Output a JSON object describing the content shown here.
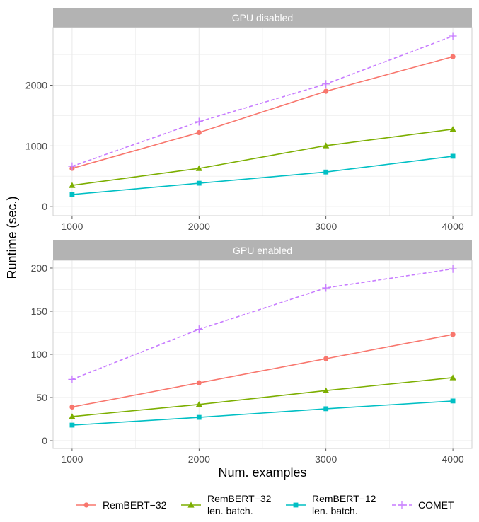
{
  "chart_data": {
    "type": "line",
    "xlabel": "Num. examples",
    "ylabel": "Runtime (sec.)",
    "x": [
      1000,
      2000,
      3000,
      4000
    ],
    "xlim": [
      1000,
      4000
    ],
    "x_ticks": [
      "1000",
      "2000",
      "3000",
      "4000"
    ],
    "grid": true,
    "legend_position": "bottom",
    "colors": {
      "RemBERT-32": "#F8766D",
      "RemBERT-32 len. batch.": "#7CAE00",
      "RemBERT-12 len. batch.": "#00BFC4",
      "COMET": "#C77CFF",
      "strip_bg": "#B3B3B3",
      "grid": "#EBEBEB",
      "panel_border": "#D0D0D0"
    },
    "series_meta": [
      {
        "name": "RemBERT-32",
        "lines": [
          "RemBERT−32"
        ],
        "marker": "circle",
        "linetype": "solid"
      },
      {
        "name": "RemBERT-32 len. batch.",
        "lines": [
          "RemBERT−32",
          "len. batch."
        ],
        "marker": "triangle",
        "linetype": "solid"
      },
      {
        "name": "RemBERT-12 len. batch.",
        "lines": [
          "RemBERT−12",
          "len. batch."
        ],
        "marker": "square",
        "linetype": "solid"
      },
      {
        "name": "COMET",
        "lines": [
          "COMET"
        ],
        "marker": "plus",
        "linetype": "dashed"
      }
    ],
    "panels": [
      {
        "title": "GPU disabled",
        "ylim": [
          -150,
          2950
        ],
        "y_ticks": [
          0,
          1000,
          2000
        ],
        "y_tick_labels": [
          "0",
          "1000",
          "2000"
        ],
        "series": [
          {
            "name": "RemBERT-32",
            "values": [
              630,
              1220,
              1900,
              2470
            ]
          },
          {
            "name": "RemBERT-32 len. batch.",
            "values": [
              350,
              630,
              1005,
              1275
            ]
          },
          {
            "name": "RemBERT-12 len. batch.",
            "values": [
              200,
              385,
              570,
              830
            ]
          },
          {
            "name": "COMET",
            "values": [
              665,
              1400,
              2020,
              2810
            ]
          }
        ]
      },
      {
        "title": "GPU enabled",
        "ylim": [
          -9,
          209
        ],
        "y_ticks": [
          0,
          50,
          100,
          150,
          200
        ],
        "y_tick_labels": [
          "0",
          "50",
          "100",
          "150",
          "200"
        ],
        "series": [
          {
            "name": "RemBERT-32",
            "values": [
              39,
              67,
              95,
              123
            ]
          },
          {
            "name": "RemBERT-32 len. batch.",
            "values": [
              28,
              42,
              58,
              73
            ]
          },
          {
            "name": "RemBERT-12 len. batch.",
            "values": [
              18,
              27,
              37,
              46
            ]
          },
          {
            "name": "COMET",
            "values": [
              71,
              129,
              177,
              199
            ]
          }
        ]
      }
    ]
  }
}
